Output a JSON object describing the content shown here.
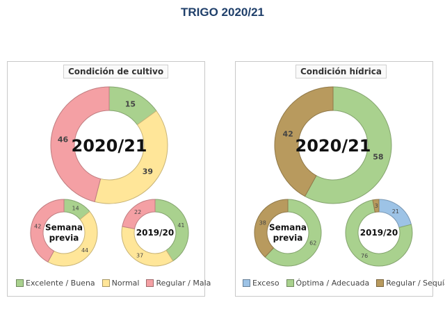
{
  "title": "TRIGO 2020/21",
  "colors": {
    "green": "#a9d18e",
    "yellow": "#ffe699",
    "red": "#f4a0a4",
    "blue": "#9dc3e6",
    "brown": "#b89a5e"
  },
  "chart_data": [
    {
      "type": "donut",
      "title": "Condición de cultivo",
      "legend_placement": "bottom",
      "legend": [
        {
          "label": "Excelente / Buena",
          "color": "#a9d18e"
        },
        {
          "label": "Normal",
          "color": "#ffe699"
        },
        {
          "label": "Regular / Mala",
          "color": "#f4a0a4"
        }
      ],
      "donuts": [
        {
          "label": "2020/21",
          "categories": [
            "Excelente / Buena",
            "Normal",
            "Regular / Mala"
          ],
          "values": [
            15,
            39,
            46
          ]
        },
        {
          "label": "Semana previa",
          "categories": [
            "Excelente / Buena",
            "Normal",
            "Regular / Mala"
          ],
          "values": [
            14,
            44,
            42
          ]
        },
        {
          "label": "2019/20",
          "categories": [
            "Excelente / Buena",
            "Normal",
            "Regular / Mala"
          ],
          "values": [
            41,
            37,
            22
          ]
        }
      ]
    },
    {
      "type": "donut",
      "title": "Condición hídrica",
      "legend_placement": "bottom",
      "legend": [
        {
          "label": "Exceso",
          "color": "#9dc3e6"
        },
        {
          "label": "Óptima / Adecuada",
          "color": "#a9d18e"
        },
        {
          "label": "Regular / Sequía",
          "color": "#b89a5e"
        }
      ],
      "donuts": [
        {
          "label": "2020/21",
          "categories": [
            "Exceso",
            "Óptima / Adecuada",
            "Regular / Sequía"
          ],
          "values": [
            0,
            58,
            42
          ]
        },
        {
          "label": "Semana previa",
          "categories": [
            "Exceso",
            "Óptima / Adecuada",
            "Regular / Sequía"
          ],
          "values": [
            0,
            62,
            38
          ]
        },
        {
          "label": "2019/20",
          "categories": [
            "Exceso",
            "Óptima / Adecuada",
            "Regular / Sequía"
          ],
          "values": [
            21,
            76,
            3
          ]
        }
      ]
    }
  ]
}
